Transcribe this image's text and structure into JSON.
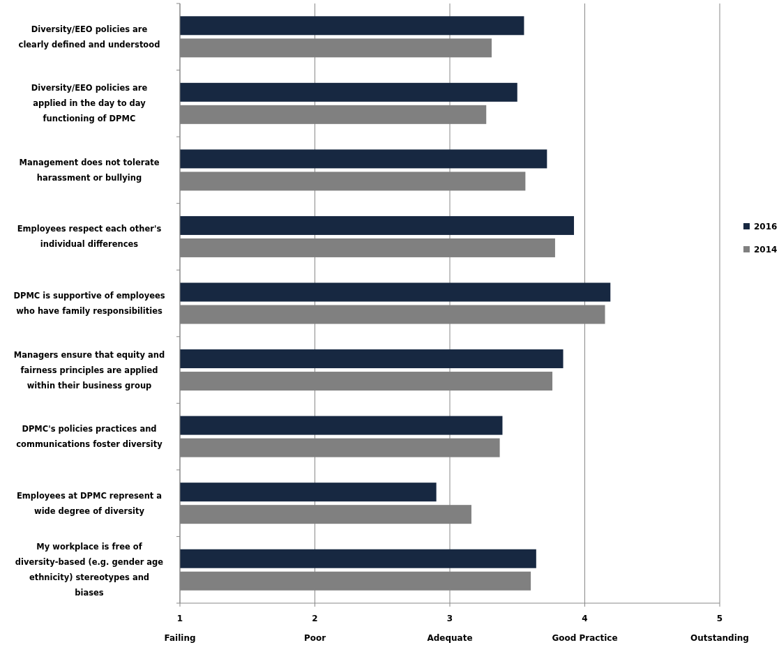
{
  "chart_data": {
    "type": "bar",
    "orientation": "horizontal",
    "categories": [
      "Diversity/EEO policies are clearly defined and understood",
      "Diversity/EEO policies are applied in the day to day functioning of DPMC",
      "Management does not tolerate harassment or bullying",
      "Employees respect each other's individual differences",
      "DPMC is supportive of employees who have family responsibilities",
      "Managers ensure that equity and fairness principles are applied within their business group",
      "DPMC's policies practices and communications foster diversity",
      "Employees at DPMC represent a wide degree of diversity",
      "My workplace is free of diversity-based (e.g. gender age ethnicity) stereotypes and biases"
    ],
    "series": [
      {
        "name": "2016",
        "color": "#172841",
        "values": [
          3.55,
          3.5,
          3.72,
          3.92,
          4.19,
          3.84,
          3.39,
          2.9,
          3.64
        ]
      },
      {
        "name": "2014",
        "color": "#808080",
        "values": [
          3.31,
          3.27,
          3.56,
          3.78,
          4.15,
          3.76,
          3.37,
          3.16,
          3.6
        ]
      }
    ],
    "xlim": [
      1,
      5
    ],
    "xticks": [
      {
        "value": 1,
        "label": "1\nFailing"
      },
      {
        "value": 2,
        "label": "2\nPoor"
      },
      {
        "value": 3,
        "label": "3\nAdequate"
      },
      {
        "value": 4,
        "label": "4\nGood Practice"
      },
      {
        "value": 5,
        "label": "5\nOutstanding"
      }
    ],
    "grid": "x",
    "legend": "right"
  }
}
